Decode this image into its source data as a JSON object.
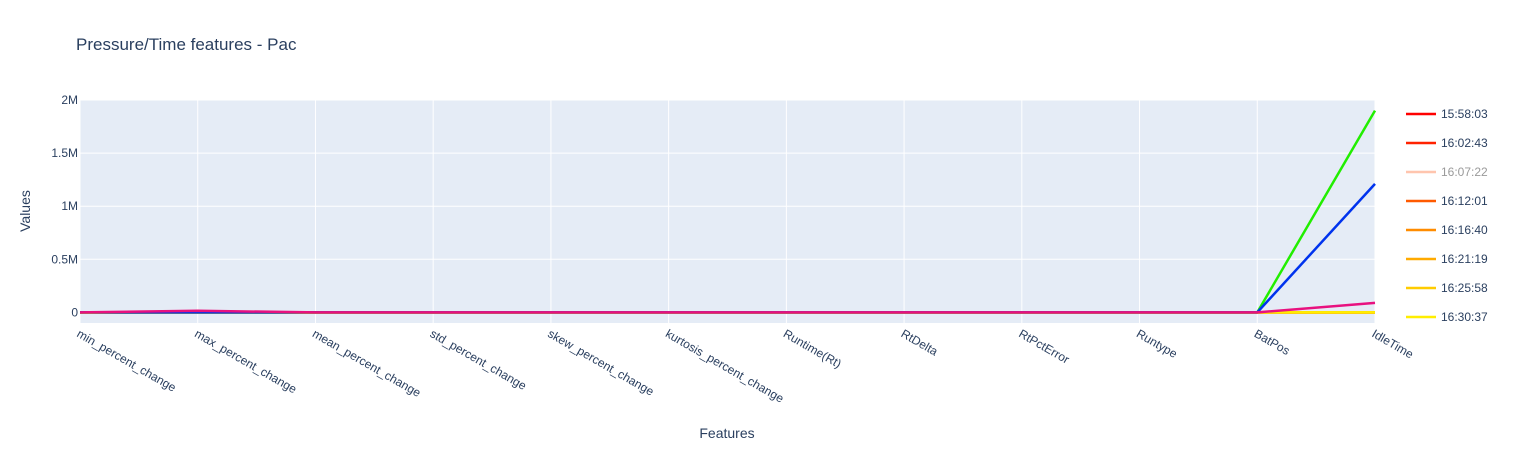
{
  "chart_data": {
    "type": "line",
    "title": "Pressure/Time features - Pac",
    "xlabel": "Features",
    "ylabel": "Values",
    "categories": [
      "min_percent_change",
      "max_percent_change",
      "mean_percent_change",
      "std_percent_change",
      "skew_percent_change",
      "kurtosis_percent_change",
      "Runtime(Rt)",
      "RtDelta",
      "RtPctError",
      "Runtype",
      "BatPos",
      "IdleTime"
    ],
    "ylim": [
      -100000,
      2000000
    ],
    "yticks": [
      0,
      500000,
      1000000,
      1500000,
      2000000
    ],
    "ytick_labels": [
      "0",
      "0.5M",
      "1M",
      "1.5M",
      "2M"
    ],
    "grid": true,
    "legend_position": "right",
    "background": "#e5ecf6",
    "series": [
      {
        "name": "15:58:03",
        "color": "#ff0000",
        "values": [
          0,
          0,
          0,
          0,
          0,
          0,
          0,
          0,
          0,
          0,
          0,
          0
        ],
        "visible": true
      },
      {
        "name": "16:02:43",
        "color": "#ff2200",
        "values": [
          0,
          0,
          0,
          0,
          0,
          0,
          0,
          0,
          0,
          0,
          0,
          0
        ],
        "visible": true
      },
      {
        "name": "16:07:22",
        "color": "#ffa07a",
        "values": [
          0,
          0,
          0,
          0,
          0,
          0,
          0,
          0,
          0,
          0,
          0,
          0
        ],
        "visible": false
      },
      {
        "name": "16:12:01",
        "color": "#ff5a00",
        "values": [
          0,
          0,
          0,
          0,
          0,
          0,
          0,
          0,
          0,
          0,
          0,
          0
        ],
        "visible": true
      },
      {
        "name": "16:16:40",
        "color": "#ff8c00",
        "values": [
          0,
          0,
          0,
          0,
          0,
          0,
          0,
          0,
          0,
          0,
          0,
          0
        ],
        "visible": true
      },
      {
        "name": "16:21:19",
        "color": "#ffaa00",
        "values": [
          0,
          0,
          0,
          0,
          0,
          0,
          0,
          0,
          0,
          0,
          0,
          0
        ],
        "visible": true
      },
      {
        "name": "16:25:58",
        "color": "#ffcc00",
        "values": [
          0,
          0,
          0,
          0,
          0,
          0,
          0,
          0,
          0,
          0,
          0,
          0
        ],
        "visible": true
      },
      {
        "name": "16:30:37",
        "color": "#ffee00",
        "values": [
          0,
          0,
          0,
          0,
          0,
          0,
          0,
          0,
          0,
          0,
          0,
          0
        ],
        "visible": true
      },
      {
        "name": "",
        "color": "#22ee00",
        "values": [
          0,
          0,
          0,
          0,
          0,
          0,
          0,
          0,
          0,
          0,
          0,
          1900000
        ],
        "visible": true
      },
      {
        "name": "",
        "color": "#0033ee",
        "values": [
          0,
          0,
          0,
          0,
          0,
          0,
          0,
          0,
          0,
          0,
          0,
          1210000
        ],
        "visible": true
      },
      {
        "name": "",
        "color": "#e8117f",
        "values": [
          0,
          15000,
          0,
          0,
          0,
          0,
          0,
          0,
          0,
          0,
          0,
          90000
        ],
        "visible": true
      }
    ]
  }
}
